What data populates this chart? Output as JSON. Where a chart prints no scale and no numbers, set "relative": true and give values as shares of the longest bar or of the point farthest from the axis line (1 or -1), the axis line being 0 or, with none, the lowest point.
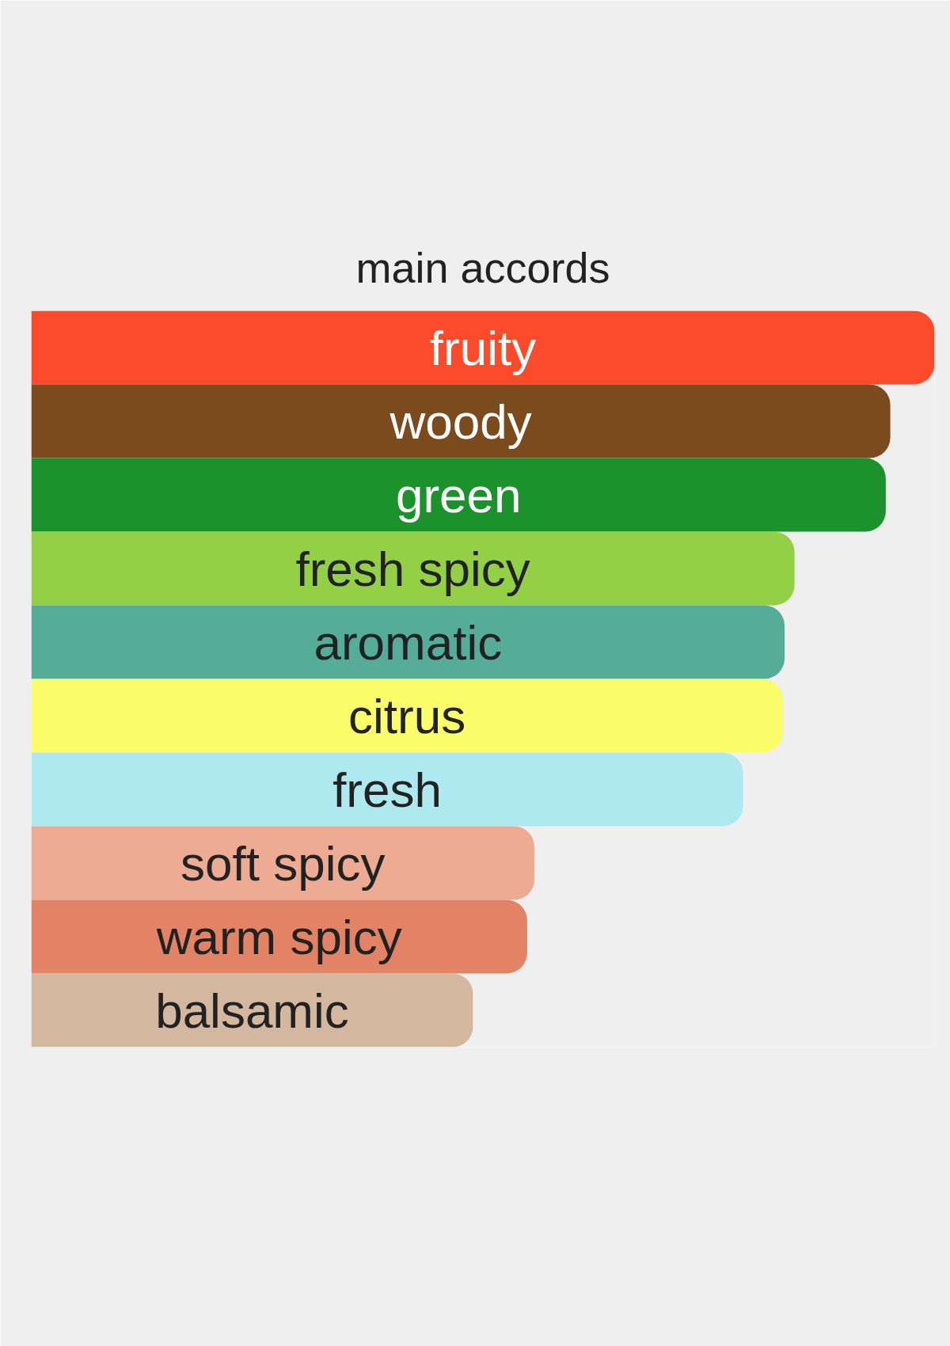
{
  "chart_data": {
    "type": "bar",
    "orientation": "horizontal",
    "relative": true,
    "title": "main accords",
    "categories": [
      "fruity",
      "woody",
      "green",
      "fresh spicy",
      "aromatic",
      "citrus",
      "fresh",
      "soft spicy",
      "warm spicy",
      "balsamic"
    ],
    "values": [
      1,
      0.951,
      0.946,
      0.845,
      0.834,
      0.832,
      0.788,
      0.557,
      0.549,
      0.489
    ],
    "colors": [
      "#fc4b2a",
      "#7b4b1e",
      "#1b922b",
      "#94d046",
      "#55ac99",
      "#fbfe68",
      "#ade9ef",
      "#edab93",
      "#e28365",
      "#d3b89f"
    ]
  }
}
